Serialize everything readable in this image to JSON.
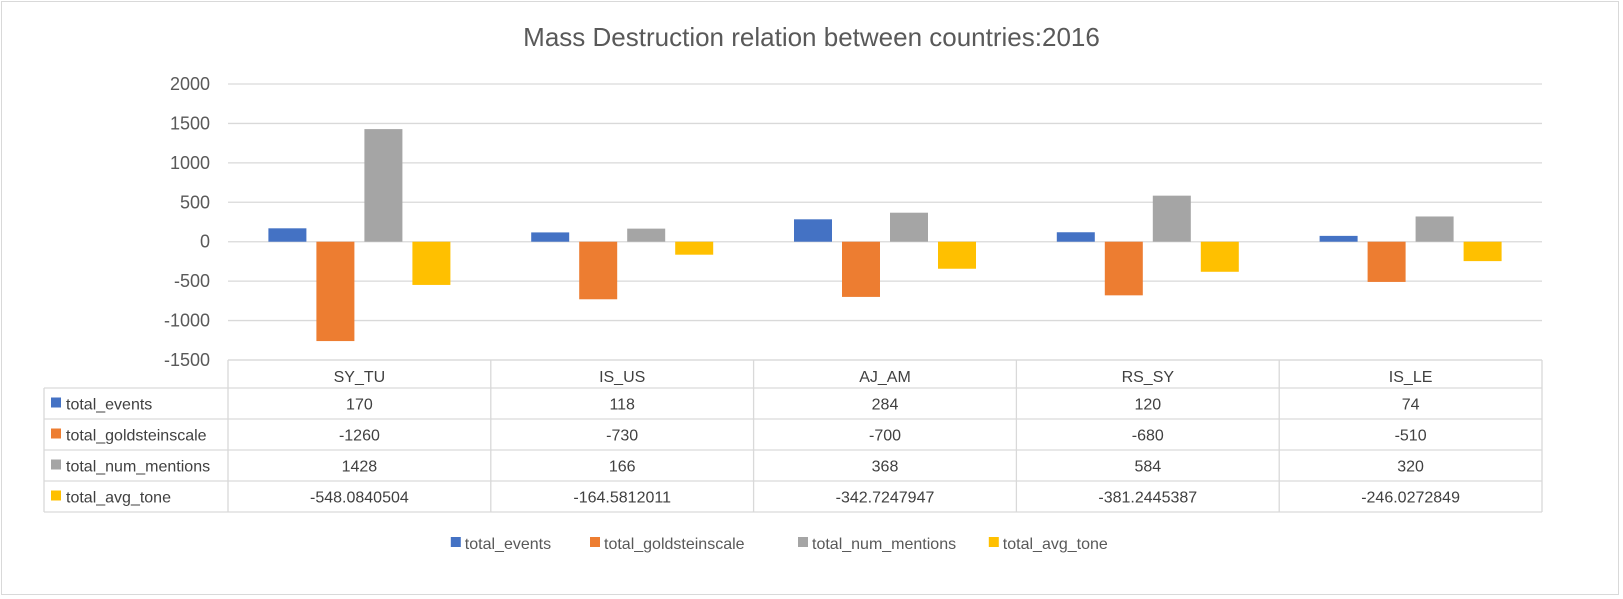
{
  "chart_data": {
    "type": "bar",
    "title": "Mass Destruction relation between countries:2016",
    "categories": [
      "SY_TU",
      "IS_US",
      "AJ_AM",
      "RS_SY",
      "IS_LE"
    ],
    "series": [
      {
        "name": "total_events",
        "color": "#4472c4",
        "values": [
          170,
          118,
          284,
          120,
          74
        ],
        "labels": [
          "170",
          "118",
          "284",
          "120",
          "74"
        ]
      },
      {
        "name": "total_goldsteinscale",
        "color": "#ed7d31",
        "values": [
          -1260,
          -730,
          -700,
          -680,
          -510
        ],
        "labels": [
          "-1260",
          "-730",
          "-700",
          "-680",
          "-510"
        ]
      },
      {
        "name": "total_num_mentions",
        "color": "#a5a5a5",
        "values": [
          1428,
          166,
          368,
          584,
          320
        ],
        "labels": [
          "1428",
          "166",
          "368",
          "584",
          "320"
        ]
      },
      {
        "name": "total_avg_tone",
        "color": "#ffc000",
        "values": [
          -548.0840504,
          -164.5812011,
          -342.7247947,
          -381.2445387,
          -246.0272849
        ],
        "labels": [
          "-548.0840504",
          "-164.5812011",
          "-342.7247947",
          "-381.2445387",
          "-246.0272849"
        ]
      }
    ],
    "yticks": [
      "2000",
      "1500",
      "1000",
      "500",
      "0",
      "-500",
      "-1000",
      "-1500"
    ],
    "ylim": [
      -1500,
      2000
    ],
    "grid": true,
    "data_table": true,
    "legend": "bottom"
  }
}
